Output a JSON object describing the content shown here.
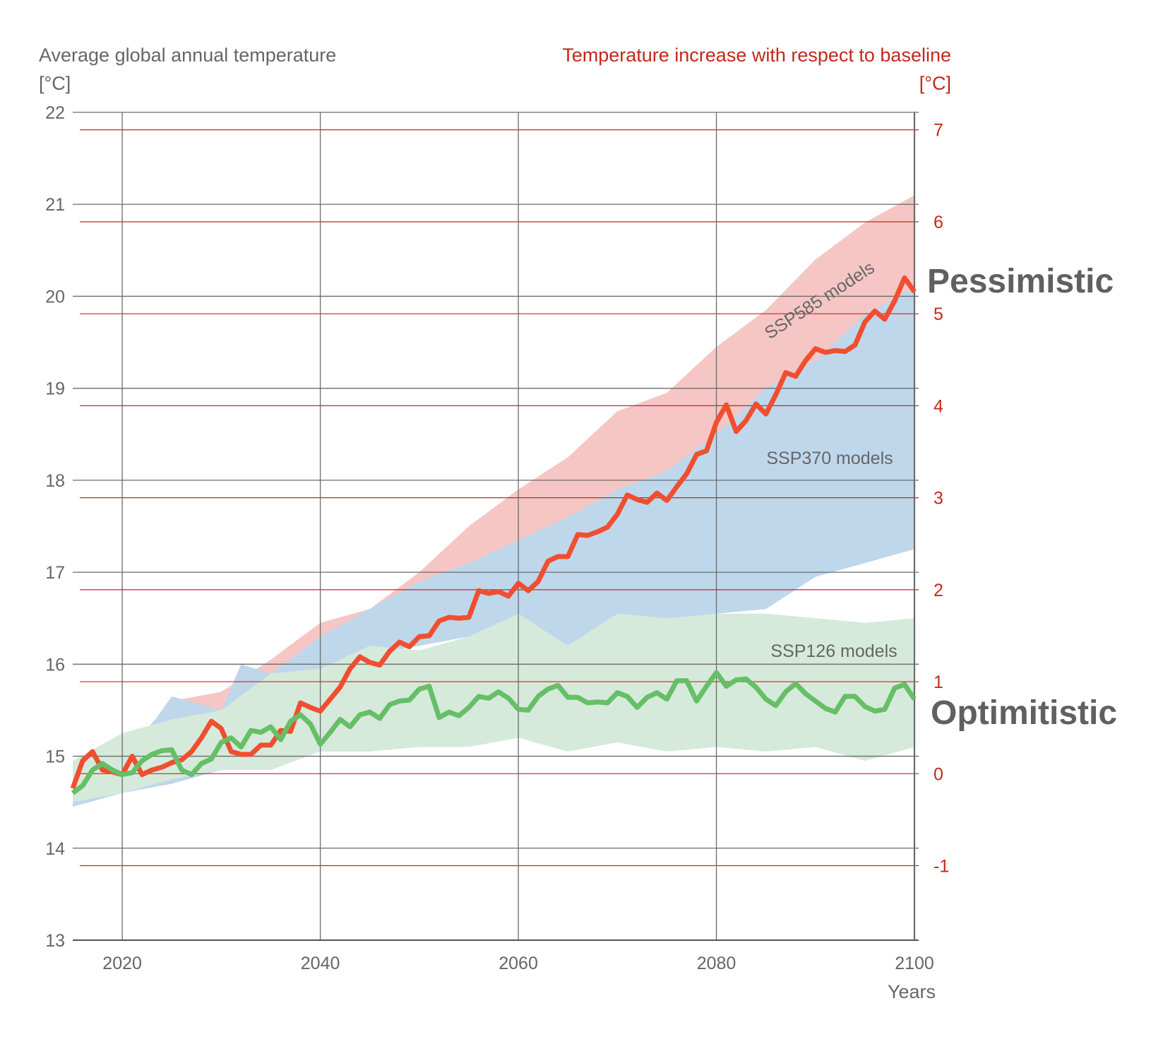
{
  "chart_data": {
    "type": "area",
    "left_axis_title": "Average global annual temperature",
    "left_axis_unit": "[°C]",
    "right_axis_title": "Temperature increase with respect to baseline",
    "right_axis_unit": "[°C]",
    "xlabel": "Years",
    "xlim": [
      2015,
      2100
    ],
    "ylim": [
      13,
      22
    ],
    "right_ylim_offset_baseline": 14.81,
    "x_ticks": [
      "2020",
      "2040",
      "2060",
      "2080",
      "2100"
    ],
    "y_ticks": [
      "13",
      "14",
      "15",
      "16",
      "17",
      "18",
      "19",
      "20",
      "21",
      "22"
    ],
    "right_ticks": [
      "-1",
      "0",
      "1",
      "2",
      "3",
      "4",
      "5",
      "6",
      "7"
    ],
    "grid": true,
    "colors": {
      "ssp585_band": "#f5c6c4",
      "ssp370_band": "#bfd7eb",
      "ssp126_band": "#d5eadb",
      "pessimistic_line": "#f04e30",
      "optimistic_line": "#66bf66",
      "right_axis": "#c4281c",
      "grid": "#6b6b6b"
    },
    "annotations": {
      "pessimistic": "Pessimistic",
      "optimistic": "Optimitistic",
      "ssp585": "SSP585 models",
      "ssp370": "SSP370 models",
      "ssp126": "SSP126 models"
    },
    "bands": [
      {
        "name": "SSP585 models",
        "x": [
          2015,
          2020,
          2025,
          2030,
          2035,
          2040,
          2045,
          2050,
          2055,
          2060,
          2065,
          2070,
          2075,
          2080,
          2085,
          2090,
          2095,
          2100
        ],
        "upper": [
          14.9,
          15.0,
          15.6,
          15.7,
          16.05,
          16.45,
          16.6,
          17.0,
          17.5,
          17.9,
          18.25,
          18.75,
          18.95,
          19.45,
          19.85,
          20.4,
          20.8,
          21.1
        ],
        "lower": [
          14.6,
          14.7,
          14.8,
          15.0,
          15.4,
          15.9,
          16.1,
          16.3,
          16.5,
          16.7,
          16.9,
          17.1,
          17.3,
          17.6,
          17.8,
          18.1,
          18.3,
          18.5
        ]
      },
      {
        "name": "SSP370 models",
        "x": [
          2015,
          2020,
          2025,
          2030,
          2032,
          2035,
          2040,
          2045,
          2050,
          2055,
          2060,
          2065,
          2070,
          2075,
          2080,
          2085,
          2090,
          2095,
          2100
        ],
        "upper": [
          14.7,
          14.9,
          15.65,
          15.5,
          16.0,
          15.9,
          16.3,
          16.6,
          16.9,
          17.1,
          17.35,
          17.6,
          17.9,
          18.1,
          18.5,
          19.0,
          19.3,
          19.8,
          20.1
        ],
        "lower": [
          14.45,
          14.6,
          14.7,
          14.85,
          15.0,
          15.2,
          15.85,
          16.1,
          16.2,
          16.3,
          16.35,
          16.05,
          16.5,
          16.45,
          16.55,
          16.6,
          16.95,
          17.1,
          17.25
        ]
      },
      {
        "name": "SSP126 models",
        "x": [
          2015,
          2020,
          2025,
          2030,
          2035,
          2040,
          2045,
          2050,
          2055,
          2060,
          2065,
          2070,
          2075,
          2080,
          2085,
          2090,
          2095,
          2100
        ],
        "upper": [
          14.95,
          15.25,
          15.4,
          15.5,
          15.9,
          15.95,
          16.2,
          16.15,
          16.3,
          16.55,
          16.2,
          16.55,
          16.5,
          16.55,
          16.55,
          16.5,
          16.45,
          16.5
        ],
        "lower": [
          14.5,
          14.6,
          14.75,
          14.85,
          14.85,
          15.05,
          15.05,
          15.1,
          15.1,
          15.2,
          15.05,
          15.15,
          15.05,
          15.1,
          15.05,
          15.1,
          14.95,
          15.1
        ]
      }
    ],
    "series": [
      {
        "name": "Pessimistic",
        "x_start": 2015,
        "values": [
          14.65,
          14.95,
          15.05,
          14.85,
          14.83,
          14.8,
          15.0,
          14.8,
          14.85,
          14.88,
          14.93,
          14.96,
          15.05,
          15.2,
          15.38,
          15.3,
          15.05,
          15.02,
          15.02,
          15.12,
          15.12,
          15.28,
          15.27,
          15.58,
          15.53,
          15.49,
          15.62,
          15.75,
          15.95,
          16.08,
          16.02,
          15.99,
          16.14,
          16.24,
          16.19,
          16.3,
          16.31,
          16.47,
          16.51,
          16.5,
          16.51,
          16.8,
          16.77,
          16.79,
          16.74,
          16.88,
          16.8,
          16.9,
          17.12,
          17.17,
          17.17,
          17.41,
          17.4,
          17.44,
          17.49,
          17.63,
          17.84,
          17.79,
          17.76,
          17.86,
          17.78,
          17.93,
          18.07,
          18.28,
          18.32,
          18.63,
          18.82,
          18.53,
          18.65,
          18.83,
          18.72,
          18.93,
          19.17,
          19.13,
          19.3,
          19.43,
          19.39,
          19.41,
          19.4,
          19.47,
          19.72,
          19.84,
          19.75,
          19.95,
          20.2,
          20.05
        ]
      },
      {
        "name": "Optimitistic",
        "x_start": 2015,
        "values": [
          14.6,
          14.68,
          14.85,
          14.92,
          14.85,
          14.8,
          14.82,
          14.95,
          15.02,
          15.06,
          15.07,
          14.85,
          14.8,
          14.92,
          14.97,
          15.15,
          15.2,
          15.1,
          15.28,
          15.26,
          15.32,
          15.18,
          15.38,
          15.45,
          15.35,
          15.13,
          15.26,
          15.4,
          15.32,
          15.45,
          15.48,
          15.41,
          15.56,
          15.6,
          15.61,
          15.73,
          15.76,
          15.42,
          15.48,
          15.44,
          15.53,
          15.65,
          15.63,
          15.7,
          15.63,
          15.51,
          15.5,
          15.65,
          15.73,
          15.77,
          15.64,
          15.64,
          15.58,
          15.59,
          15.58,
          15.69,
          15.65,
          15.53,
          15.64,
          15.69,
          15.62,
          15.82,
          15.82,
          15.6,
          15.76,
          15.91,
          15.76,
          15.83,
          15.84,
          15.75,
          15.62,
          15.55,
          15.7,
          15.79,
          15.68,
          15.6,
          15.52,
          15.48,
          15.65,
          15.65,
          15.54,
          15.49,
          15.51,
          15.74,
          15.78,
          15.62
        ]
      }
    ]
  }
}
